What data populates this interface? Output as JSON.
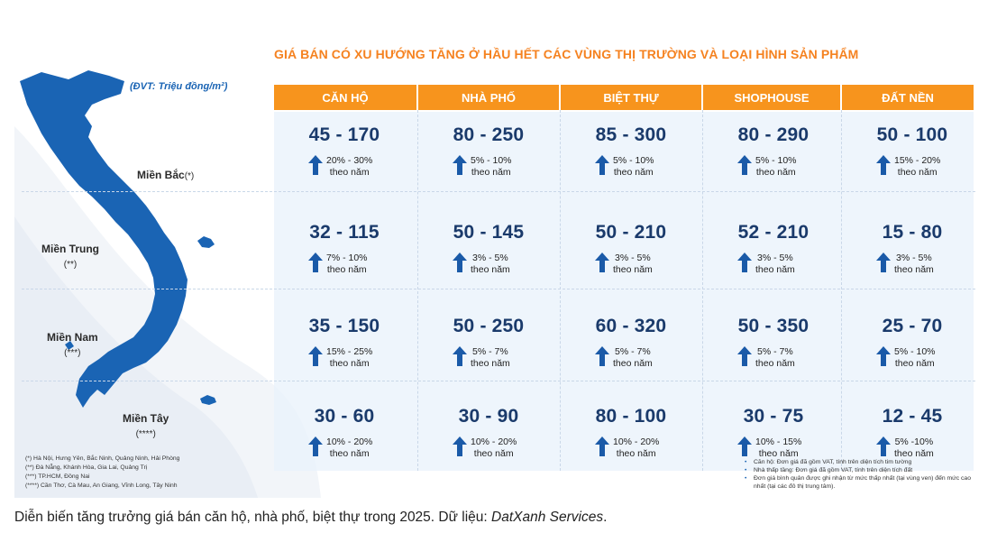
{
  "title": "GIÁ BÁN CÓ XU HƯỚNG TĂNG Ở HẦU HẾT CÁC VÙNG THỊ TRƯỜNG VÀ LOẠI HÌNH SẢN PHẨM",
  "unit": "(ĐVT: Triệu đồng/m²)",
  "columns": [
    "CĂN HỘ",
    "NHÀ PHỐ",
    "BIỆT THỰ",
    "SHOPHOUSE",
    "ĐẤT NỀN"
  ],
  "regions": [
    {
      "name": "Miền Bắc",
      "mark": "(*)"
    },
    {
      "name": "Miền Trung",
      "mark": "(**)"
    },
    {
      "name": "Miền Nam",
      "mark": "(***)"
    },
    {
      "name": "Miền Tây",
      "mark": "(****)"
    }
  ],
  "per_year": "theo năm",
  "rows": [
    [
      {
        "range": "45 - 170",
        "pct": "20% - 30%"
      },
      {
        "range": "80 - 250",
        "pct": "5% - 10%"
      },
      {
        "range": "85 - 300",
        "pct": "5% - 10%"
      },
      {
        "range": "80 - 290",
        "pct": "5% - 10%"
      },
      {
        "range": "50 - 100",
        "pct": "15% - 20%"
      }
    ],
    [
      {
        "range": "32 - 115",
        "pct": "7% - 10%"
      },
      {
        "range": "50 - 145",
        "pct": "3% - 5%"
      },
      {
        "range": "50 - 210",
        "pct": "3% - 5%"
      },
      {
        "range": "52 - 210",
        "pct": "3% - 5%"
      },
      {
        "range": "15 - 80",
        "pct": "3% - 5%"
      }
    ],
    [
      {
        "range": "35 - 150",
        "pct": "15% - 25%"
      },
      {
        "range": "50 - 250",
        "pct": "5% - 7%"
      },
      {
        "range": "60 - 320",
        "pct": "5% - 7%"
      },
      {
        "range": "50 - 350",
        "pct": "5% - 7%"
      },
      {
        "range": "25 - 70",
        "pct": "5% - 10%"
      }
    ],
    [
      {
        "range": "30 - 60",
        "pct": "10% - 20%"
      },
      {
        "range": "30 - 90",
        "pct": "10% - 20%"
      },
      {
        "range": "80 - 100",
        "pct": "10% - 20%"
      },
      {
        "range": "30 - 75",
        "pct": "10% - 15%"
      },
      {
        "range": "12 - 45",
        "pct": "5% -10%"
      }
    ]
  ],
  "footnotes_left": [
    "(*) Hà Nội, Hưng Yên, Bắc Ninh, Quảng Ninh, Hải Phòng",
    "(**) Đà Nẵng, Khánh Hòa, Gia Lai, Quảng Trị",
    "(***) TP.HCM, Đồng Nai",
    "(****) Cần Thơ, Cà Mau, An Giang, Vĩnh Long, Tây Ninh"
  ],
  "footnotes_right": [
    "Căn hộ: Đơn giá đã gồm VAT, tính trên diện tích tim tường",
    "Nhà thấp tầng: Đơn giá đã gồm VAT, tính trên diện tích đất",
    "Đơn giá bình quân được ghi nhận từ mức thấp nhất (tại vùng ven) đến mức cao nhất (tại các đô thị trung tâm)."
  ],
  "caption": {
    "text": "Diễn biến tăng trưởng giá bán căn hộ, nhà phố, biệt thự trong 2025. Dữ liệu: ",
    "source": "DatXanh Services",
    "end": "."
  },
  "colors": {
    "header": "#f7941d",
    "title": "#f58220",
    "map": "#1a64b4",
    "arrow": "#1a5aa8",
    "value": "#1a3a6b"
  }
}
